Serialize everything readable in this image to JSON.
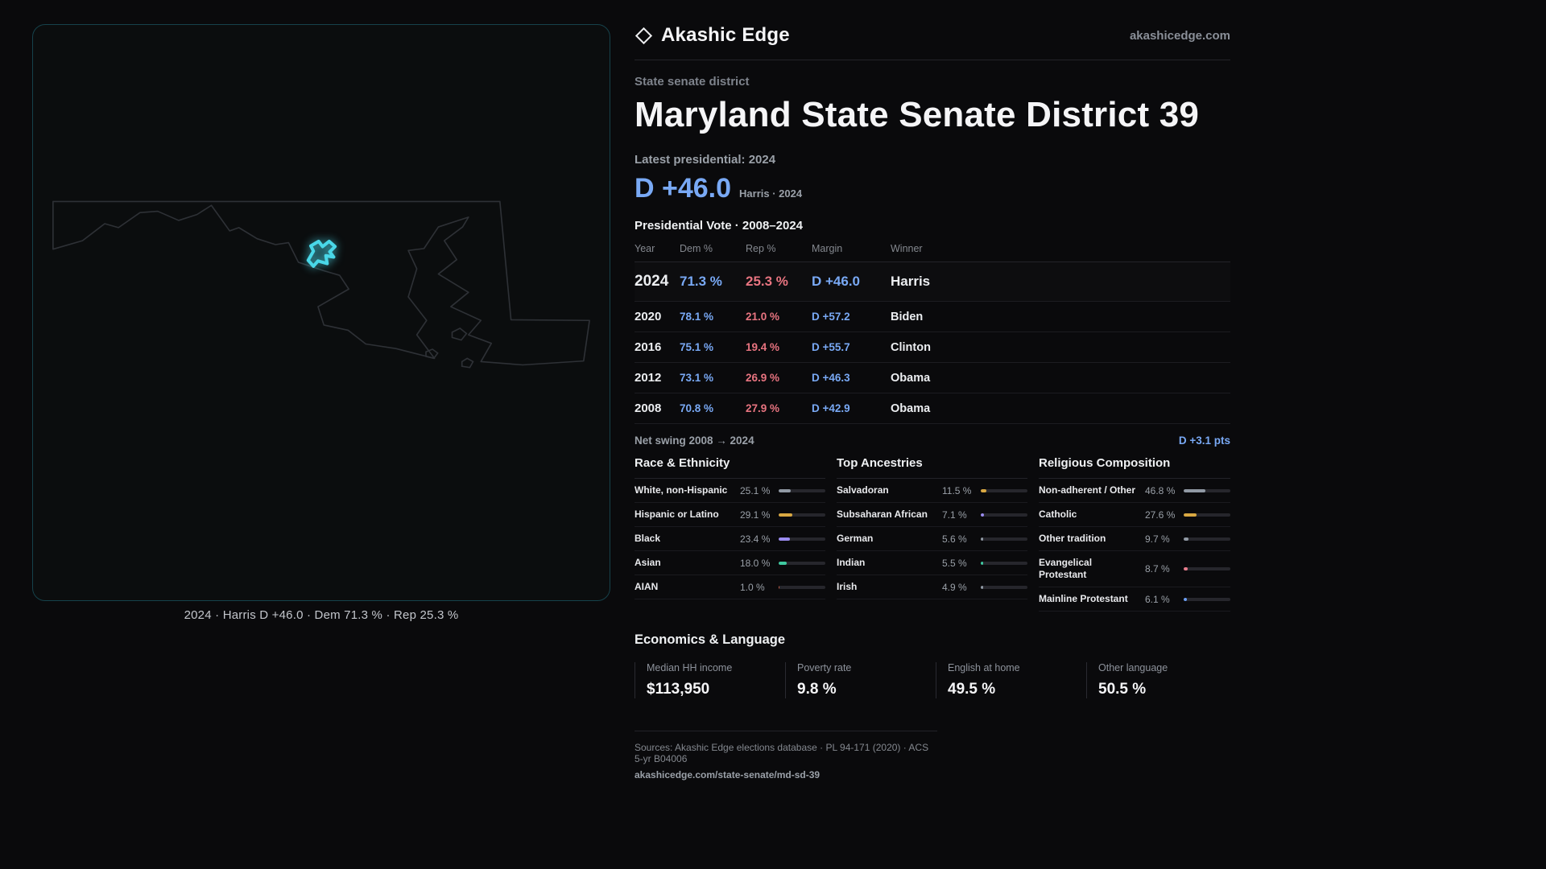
{
  "colors": {
    "dem": "#79a9f5",
    "rep": "#e87480",
    "accent": "#49d7e8"
  },
  "header": {
    "brand": "Akashic Edge",
    "site": "akashicedge.com",
    "district_type": "State senate district",
    "title": "Maryland State Senate District 39"
  },
  "latest": {
    "label": "Latest presidential: 2024",
    "margin": "D +46.0",
    "detail": "Harris · 2024"
  },
  "table": {
    "title": "Presidential Vote · 2008–2024",
    "columns": [
      "Year",
      "Dem %",
      "Rep %",
      "Margin",
      "Winner"
    ],
    "rows": [
      {
        "year": "2024",
        "dem": "71.3 %",
        "rep": "25.3 %",
        "margin": "D +46.0",
        "winner": "Harris"
      },
      {
        "year": "2020",
        "dem": "78.1 %",
        "rep": "21.0 %",
        "margin": "D +57.2",
        "winner": "Biden"
      },
      {
        "year": "2016",
        "dem": "75.1 %",
        "rep": "19.4 %",
        "margin": "D +55.7",
        "winner": "Clinton"
      },
      {
        "year": "2012",
        "dem": "73.1 %",
        "rep": "26.9 %",
        "margin": "D +46.3",
        "winner": "Obama"
      },
      {
        "year": "2008",
        "dem": "70.8 %",
        "rep": "27.9 %",
        "margin": "D +42.9",
        "winner": "Obama"
      }
    ]
  },
  "swing": {
    "label": "Net swing 2008 → 2024",
    "value": "D +3.1 pts"
  },
  "demographics": [
    {
      "title": "Race & Ethnicity",
      "items": [
        {
          "label": "White, non-Hispanic",
          "value": "25.1 %",
          "pct": 25.1,
          "color": "#9099a4"
        },
        {
          "label": "Hispanic or Latino",
          "value": "29.1 %",
          "pct": 29.1,
          "color": "#d9a842"
        },
        {
          "label": "Black",
          "value": "23.4 %",
          "pct": 23.4,
          "color": "#9b8cf0"
        },
        {
          "label": "Asian",
          "value": "18.0 %",
          "pct": 18.0,
          "color": "#3fc9a0"
        },
        {
          "label": "AIAN",
          "value": "1.0 %",
          "pct": 1.0,
          "color": "#c05a44"
        }
      ]
    },
    {
      "title": "Top Ancestries",
      "items": [
        {
          "label": "Salvadoran",
          "value": "11.5 %",
          "pct": 11.5,
          "color": "#d9a842"
        },
        {
          "label": "Subsaharan African",
          "value": "7.1 %",
          "pct": 7.1,
          "color": "#9b8cf0"
        },
        {
          "label": "German",
          "value": "5.6 %",
          "pct": 5.6,
          "color": "#9099a4"
        },
        {
          "label": "Indian",
          "value": "5.5 %",
          "pct": 5.5,
          "color": "#3fc9a0"
        },
        {
          "label": "Irish",
          "value": "4.9 %",
          "pct": 4.9,
          "color": "#9099a4"
        }
      ]
    },
    {
      "title": "Religious Composition",
      "items": [
        {
          "label": "Non-adherent / Other",
          "value": "46.8 %",
          "pct": 46.8,
          "color": "#9099a4"
        },
        {
          "label": "Catholic",
          "value": "27.6 %",
          "pct": 27.6,
          "color": "#d9a842"
        },
        {
          "label": "Other tradition",
          "value": "9.7 %",
          "pct": 9.7,
          "color": "#9099a4"
        },
        {
          "label": "Evangelical Protestant",
          "value": "8.7 %",
          "pct": 8.7,
          "color": "#e87d8c"
        },
        {
          "label": "Mainline Protestant",
          "value": "6.1 %",
          "pct": 6.1,
          "color": "#6b9ff5"
        }
      ]
    }
  ],
  "economics": {
    "title": "Economics & Language",
    "stats": [
      {
        "label": "Median HH income",
        "value": "$113,950"
      },
      {
        "label": "Poverty rate",
        "value": "9.8 %"
      },
      {
        "label": "English at home",
        "value": "49.5 %"
      },
      {
        "label": "Other language",
        "value": "50.5 %"
      }
    ]
  },
  "map": {
    "caption": "2024 · Harris D +46.0 · Dem 71.3 % · Rep 25.3 %"
  },
  "footer": {
    "sources": "Sources: Akashic Edge elections database · PL 94-171 (2020) · ACS 5-yr B04006",
    "permalink": "akashicedge.com/state-senate/md-sd-39"
  }
}
